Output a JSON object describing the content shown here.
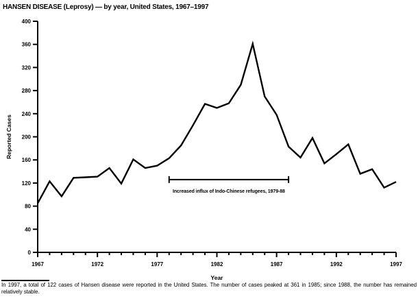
{
  "title": "HANSEN DISEASE (Leprosy) — by year, United States, 1967–1997",
  "footnote": "In 1997, a total of 122 cases of Hansen disease were reported in the United States. The number of cases peaked at 361 in 1985; since 1988, the number has remained relatively stable.",
  "chart_data": {
    "type": "line",
    "title": "HANSEN DISEASE (Leprosy) — by year, United States, 1967–1997",
    "xlabel": "Year",
    "ylabel": "Reported Cases",
    "x": [
      1967,
      1968,
      1969,
      1970,
      1971,
      1972,
      1973,
      1974,
      1975,
      1976,
      1977,
      1978,
      1979,
      1980,
      1981,
      1982,
      1983,
      1984,
      1985,
      1986,
      1987,
      1988,
      1989,
      1990,
      1991,
      1992,
      1993,
      1994,
      1995,
      1996,
      1997
    ],
    "values": [
      85,
      123,
      97,
      129,
      130,
      131,
      146,
      119,
      161,
      146,
      150,
      163,
      185,
      220,
      257,
      250,
      258,
      290,
      361,
      270,
      238,
      183,
      164,
      198,
      154,
      170,
      187,
      136,
      144,
      112,
      122
    ],
    "ylim": [
      0,
      400
    ],
    "ytick_interval": 40,
    "xticks_major": [
      1967,
      1972,
      1977,
      1982,
      1987,
      1992,
      1997
    ],
    "grid": false,
    "line_color": "#000000",
    "annotation": {
      "text": "Increased influx of Indo-Chinese refugees, 1979-88",
      "x_start": 1978,
      "x_end": 1988,
      "y": 126
    }
  }
}
